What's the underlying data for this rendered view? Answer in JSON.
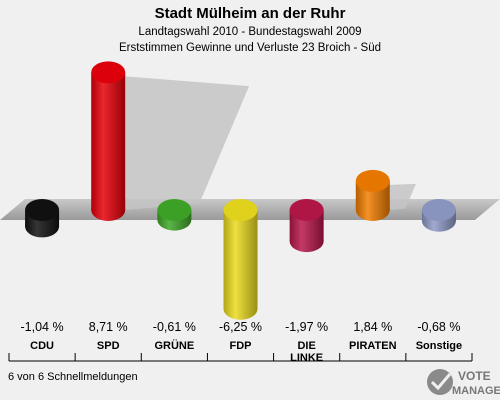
{
  "chart_data": {
    "type": "bar",
    "title": "Stadt Mülheim an der Ruhr",
    "subtitle_lines": [
      "Landtagswahl 2010 - Bundestagswahl 2009",
      "Erststimmen Gewinne und Verluste 23 Broich - Süd"
    ],
    "categories": [
      "CDU",
      "SPD",
      "GRÜNE",
      "FDP",
      "DIE LINKE",
      "PIRATEN",
      "Sonstige"
    ],
    "category_label_lines": [
      [
        "CDU"
      ],
      [
        "SPD"
      ],
      [
        "GRÜNE"
      ],
      [
        "FDP"
      ],
      [
        "DIE",
        "LINKE"
      ],
      [
        "PIRATEN"
      ],
      [
        "Sonstige"
      ]
    ],
    "values": [
      -1.04,
      8.71,
      -0.61,
      -6.25,
      -1.97,
      1.84,
      -0.68
    ],
    "value_labels": [
      "-1,04 %",
      "8,71 %",
      "-0,61 %",
      "-6,25 %",
      "-1,97 %",
      "1,84 %",
      "-0,68 %"
    ],
    "colors": [
      "#111111",
      "#e8000a",
      "#3fa828",
      "#ecdc1e",
      "#b8174a",
      "#f17d00",
      "#8f9bc8"
    ],
    "baseline": 0,
    "grid": false
  },
  "footer": {
    "status": "6 von 6 Schnellmeldungen"
  },
  "logo": {
    "line1": "VOTE",
    "line2": "MANAGER"
  }
}
